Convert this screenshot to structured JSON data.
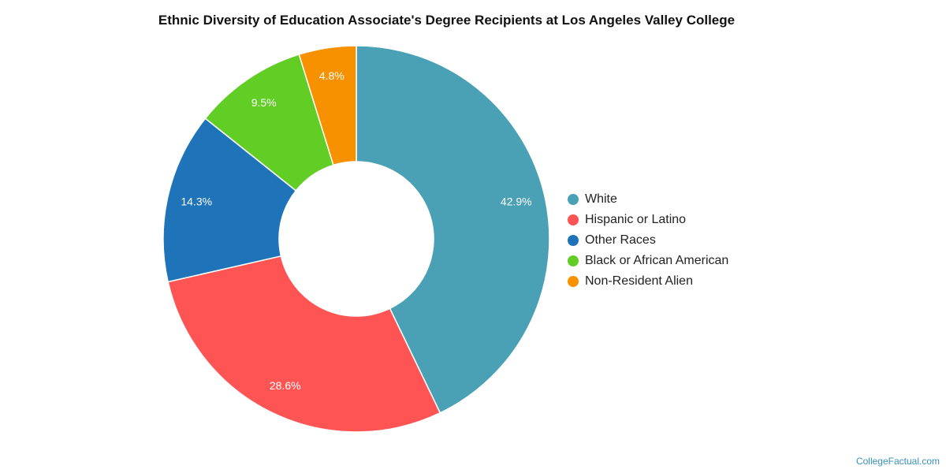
{
  "chart_data": {
    "type": "pie",
    "title": "Ethnic Diversity of Education Associate's Degree Recipients at Los Angeles Valley College",
    "donut": true,
    "legend_position": "right",
    "slices": [
      {
        "name": "White",
        "value": 42.9,
        "label": "42.9%",
        "color": "#4aa0b5"
      },
      {
        "name": "Hispanic or Latino",
        "value": 28.6,
        "label": "28.6%",
        "color": "#fe5454"
      },
      {
        "name": "Other Races",
        "value": 14.3,
        "label": "14.3%",
        "color": "#1f73b8"
      },
      {
        "name": "Black or African American",
        "value": 9.5,
        "label": "9.5%",
        "color": "#62cd24"
      },
      {
        "name": "Non-Resident Alien",
        "value": 4.8,
        "label": "4.8%",
        "color": "#f79100"
      }
    ]
  },
  "watermark": "CollegeFactual.com"
}
